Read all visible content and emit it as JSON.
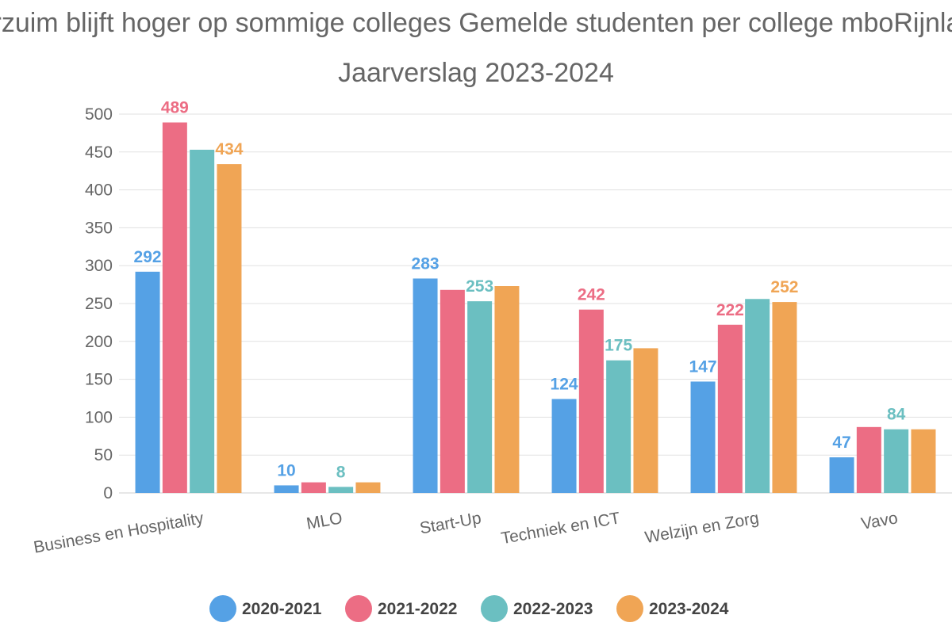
{
  "chart_data": {
    "type": "bar",
    "title_lines": [
      "Verzuim blijft hoger op sommige colleges Gemelde studenten per college mboRijnland",
      "Jaarverslag 2023-2024"
    ],
    "categories": [
      "Business en Hospitality",
      "MLO",
      "Start-Up",
      "Techniek en ICT",
      "Welzijn en Zorg",
      "Vavo"
    ],
    "series": [
      {
        "name": "2020-2021",
        "color": "#55a1e5",
        "values": [
          292,
          10,
          283,
          124,
          147,
          47
        ],
        "labels": [
          "292",
          "10",
          "283",
          "124",
          "147",
          "47"
        ]
      },
      {
        "name": "2021-2022",
        "color": "#ec6d84",
        "values": [
          489,
          14,
          268,
          242,
          222,
          87
        ],
        "labels": [
          "489",
          "",
          "",
          "242",
          "222",
          ""
        ]
      },
      {
        "name": "2022-2023",
        "color": "#6bbfc1",
        "values": [
          453,
          8,
          253,
          175,
          256,
          84
        ],
        "labels": [
          "",
          "8",
          "253",
          "175",
          "",
          "84"
        ]
      },
      {
        "name": "2023-2024",
        "color": "#f0a555",
        "values": [
          434,
          14,
          273,
          191,
          252,
          84
        ],
        "labels": [
          "434",
          "",
          "",
          "",
          "252",
          ""
        ]
      }
    ],
    "ylim": [
      0,
      500
    ],
    "yticks": [
      "0",
      "50",
      "100",
      "150",
      "200",
      "250",
      "300",
      "350",
      "400",
      "450",
      "500"
    ],
    "grid": true,
    "legend_position": "bottom"
  }
}
